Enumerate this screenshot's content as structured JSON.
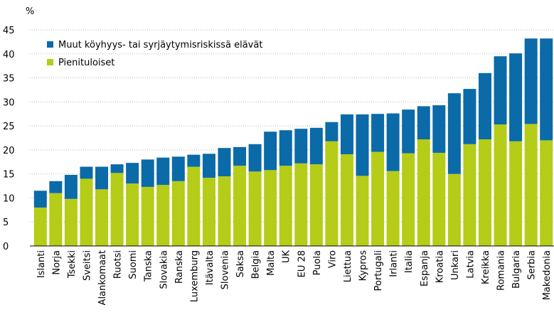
{
  "chart_data": {
    "type": "stacked-bar",
    "y_label": "%",
    "categories": [
      "Islanti",
      "Norja",
      "Tsekki",
      "Sveitsi",
      "Alankomaat",
      "Ruotsi",
      "Suomi",
      "Tanska",
      "Slovakia",
      "Ranska",
      "Luxemburg",
      "Itävalta",
      "Slovenia",
      "Saksa",
      "Belgia",
      "Malta",
      "UK",
      "EU 28",
      "Puola",
      "Viro",
      "Liettua",
      "Kypros",
      "Portugali",
      "Irlanti",
      "Italia",
      "Espanja",
      "Kroatia",
      "Unkari",
      "Latvia",
      "Kreikka",
      "Romania",
      "Bulgaria",
      "Serbia",
      "Makedonia"
    ],
    "series": [
      {
        "name": "Pienituloiset",
        "color": "#b5cc18",
        "values": [
          8,
          11,
          9.8,
          14,
          11.8,
          15.2,
          13,
          12.3,
          12.7,
          13.5,
          16.5,
          14.2,
          14.5,
          16.7,
          15.5,
          15.8,
          16.7,
          17.2,
          17,
          21.8,
          19.1,
          14.6,
          19.6,
          15.6,
          19.3,
          22.2,
          19.4,
          15.0,
          21.2,
          22.2,
          25.3,
          21.8,
          25.4,
          22
        ]
      },
      {
        "name": "Muut köyhyys- tai syrjäytymisriskissä elävät",
        "color": "#0b6aa8",
        "values": [
          3.5,
          2.5,
          5.0,
          2.5,
          4.7,
          1.8,
          4.3,
          5.7,
          5.7,
          5.1,
          2.5,
          5.0,
          5.9,
          3.9,
          5.7,
          8.0,
          7.4,
          7.2,
          7.6,
          4.0,
          8.3,
          12.8,
          7.9,
          12.0,
          9.1,
          6.9,
          9.9,
          16.8,
          11.5,
          13.8,
          14.2,
          18.3,
          17.8,
          21.2
        ]
      }
    ],
    "ylim": [
      0,
      45
    ],
    "yticks": [
      0,
      5,
      10,
      15,
      20,
      25,
      30,
      35,
      40,
      45
    ],
    "grid": true,
    "legend": "top-left"
  }
}
